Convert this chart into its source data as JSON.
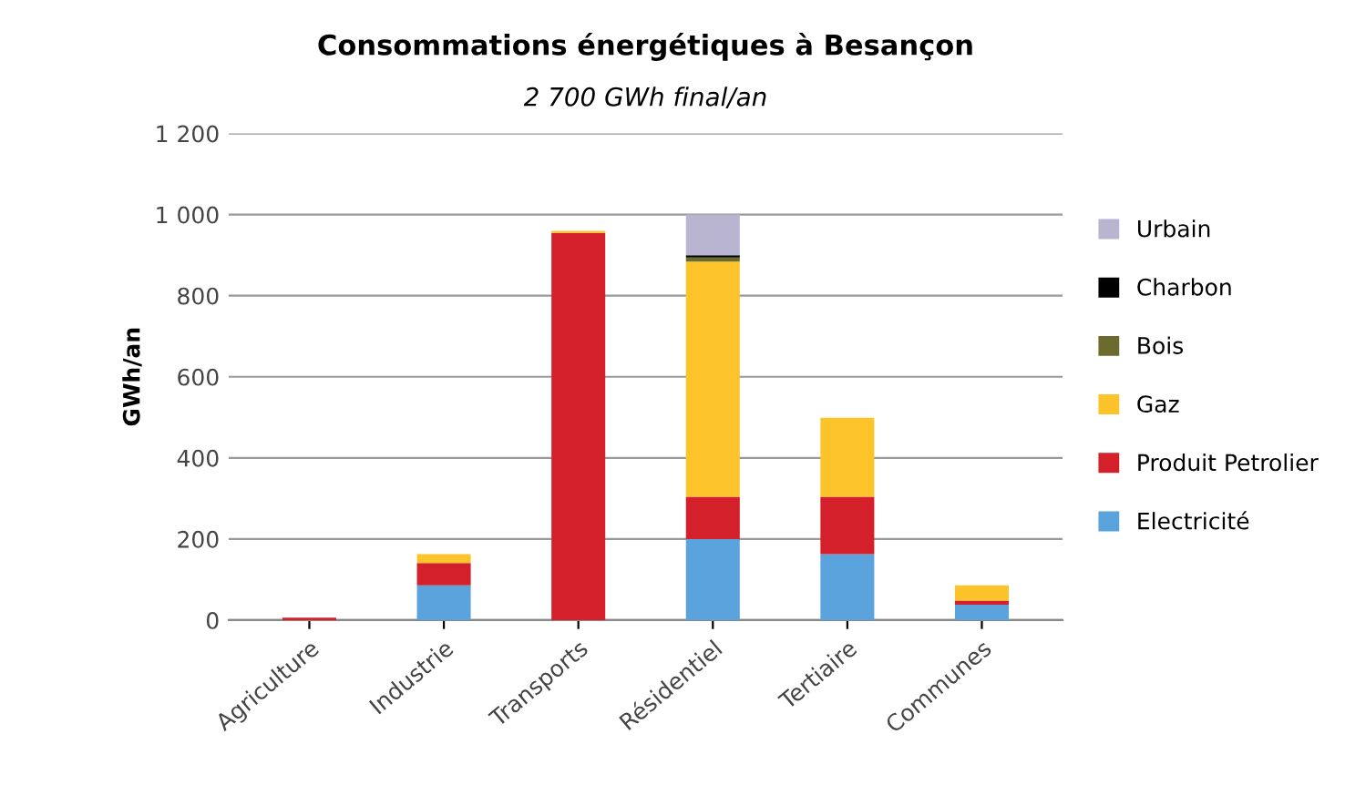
{
  "chart_data": {
    "type": "bar",
    "stacked": true,
    "title": "Consommations énergétiques à Besançon",
    "subtitle": "2 700 GWh final/an",
    "ylabel": "GWh/an",
    "categories": [
      "Agriculture",
      "Industrie",
      "Transports",
      "Résidentiel",
      "Tertiaire",
      "Communes"
    ],
    "series": [
      {
        "name": "Electricité",
        "color": "#5aa3dc",
        "values": [
          0,
          86,
          0,
          200,
          163,
          38
        ]
      },
      {
        "name": "Produit Petrolier",
        "color": "#d4202a",
        "values": [
          6,
          55,
          955,
          104,
          141,
          10
        ]
      },
      {
        "name": "Gaz",
        "color": "#fcc42a",
        "values": [
          0,
          22,
          5,
          580,
          195,
          38
        ]
      },
      {
        "name": "Bois",
        "color": "#6b6b2e",
        "values": [
          0,
          0,
          0,
          10,
          0,
          0
        ]
      },
      {
        "name": "Charbon",
        "color": "#000000",
        "values": [
          0,
          0,
          0,
          6,
          0,
          0
        ]
      },
      {
        "name": "Urbain",
        "color": "#b9b4d0",
        "values": [
          0,
          0,
          0,
          100,
          0,
          0
        ]
      }
    ],
    "ylim": [
      0,
      1200
    ],
    "yticks": [
      0,
      {
        "value": 200,
        "label": "200"
      },
      {
        "value": 400,
        "label": "400"
      },
      {
        "value": 600,
        "label": "600"
      },
      {
        "value": 800,
        "label": "800"
      },
      {
        "value": 1000,
        "label": "1 000"
      },
      {
        "value": 1200,
        "label": "1 200"
      }
    ],
    "grid": "y",
    "legend": "right"
  }
}
